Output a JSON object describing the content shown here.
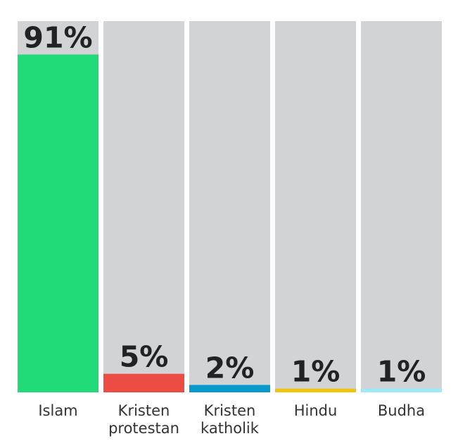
{
  "chart_data": {
    "type": "bar",
    "categories": [
      [
        "Islam"
      ],
      [
        "Kristen",
        "protestan"
      ],
      [
        "Kristen",
        "katholik"
      ],
      [
        "Hindu"
      ],
      [
        "Budha"
      ]
    ],
    "values": [
      91,
      5,
      2,
      1,
      1
    ],
    "value_labels": [
      "91%",
      "5%",
      "2%",
      "1%",
      "1%"
    ],
    "colors": [
      "#21da78",
      "#ed4c42",
      "#0898cc",
      "#f0c40e",
      "#9ee9f8"
    ],
    "background_color": "#d2d3d5",
    "ylim": [
      0,
      100
    ],
    "grid": false,
    "legend": "none"
  }
}
